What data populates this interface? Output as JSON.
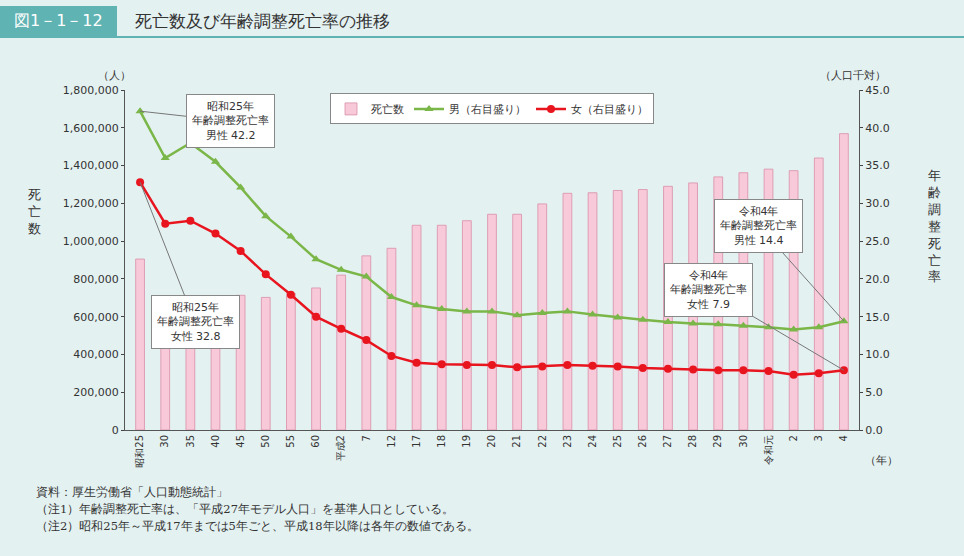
{
  "chart_data": {
    "type": "bar",
    "figure_number": "図1－1－12",
    "title": "死亡数及び年齢調整死亡率の推移",
    "y_label": "死亡数",
    "y2_label": "年齢調整死亡率",
    "y_unit": "（人）",
    "y2_unit": "（人口千対）",
    "x_unit": "（年）",
    "categories": [
      "昭和25",
      "30",
      "35",
      "40",
      "45",
      "50",
      "55",
      "60",
      "平成2",
      "7",
      "12",
      "17",
      "18",
      "19",
      "20",
      "21",
      "22",
      "23",
      "24",
      "25",
      "26",
      "27",
      "28",
      "29",
      "30",
      "令和元",
      "2",
      "3",
      "4"
    ],
    "series": [
      {
        "name": "死亡数",
        "type": "bar",
        "color": "#f7c9d9",
        "values": [
          905000,
          694000,
          707000,
          700000,
          713000,
          702000,
          723000,
          752000,
          820000,
          922000,
          962000,
          1084000,
          1084000,
          1108000,
          1142000,
          1142000,
          1197000,
          1253000,
          1256000,
          1268000,
          1273000,
          1290000,
          1308000,
          1340000,
          1362000,
          1381000,
          1373000,
          1440000,
          1569000
        ]
      },
      {
        "name": "男（右目盛り）",
        "type": "line",
        "axis": "y2",
        "color": "#7ab648",
        "marker": "triangle-up",
        "values": [
          42.2,
          36.0,
          38.0,
          35.5,
          32.1,
          28.3,
          25.6,
          22.6,
          21.2,
          20.3,
          17.6,
          16.5,
          16.0,
          15.7,
          15.7,
          15.2,
          15.5,
          15.7,
          15.3,
          14.9,
          14.6,
          14.3,
          14.1,
          14.0,
          13.8,
          13.6,
          13.3,
          13.6,
          14.4
        ]
      },
      {
        "name": "女（右目盛り）",
        "type": "line",
        "axis": "y2",
        "color": "#e8141e",
        "marker": "circle",
        "values": [
          32.8,
          27.3,
          27.7,
          26.0,
          23.7,
          20.6,
          17.9,
          15.0,
          13.4,
          11.9,
          9.8,
          8.9,
          8.7,
          8.6,
          8.6,
          8.3,
          8.4,
          8.6,
          8.5,
          8.4,
          8.2,
          8.1,
          8.0,
          7.9,
          7.9,
          7.8,
          7.3,
          7.5,
          7.9
        ]
      }
    ],
    "ylim": [
      0,
      1800000
    ],
    "yticks": [
      {
        "value": 0,
        "label": "0"
      },
      {
        "value": 200000,
        "label": "200,000"
      },
      {
        "value": 400000,
        "label": "400,000"
      },
      {
        "value": 600000,
        "label": "600,000"
      },
      {
        "value": 800000,
        "label": "800,000"
      },
      {
        "value": 1000000,
        "label": "1,000,000"
      },
      {
        "value": 1200000,
        "label": "1,200,000"
      },
      {
        "value": 1400000,
        "label": "1,400,000"
      },
      {
        "value": 1600000,
        "label": "1,600,000"
      },
      {
        "value": 1800000,
        "label": "1,800,000"
      }
    ],
    "y2lim": [
      0,
      45
    ],
    "y2ticks": [
      {
        "value": 0,
        "label": "0.0"
      },
      {
        "value": 5,
        "label": "5.0"
      },
      {
        "value": 10,
        "label": "10.0"
      },
      {
        "value": 15,
        "label": "15.0"
      },
      {
        "value": 20,
        "label": "20.0"
      },
      {
        "value": 25,
        "label": "25.0"
      },
      {
        "value": 30,
        "label": "30.0"
      },
      {
        "value": 35,
        "label": "35.0"
      },
      {
        "value": 40,
        "label": "40.0"
      },
      {
        "value": 45,
        "label": "45.0"
      }
    ],
    "grid": false,
    "legend": "top",
    "annotations": [
      {
        "text": "昭和25年\n年齢調整死亡率\n男性 42.2",
        "x": "昭和25",
        "y": 42.2
      },
      {
        "text": "昭和25年\n年齢調整死亡率\n女性 32.8",
        "x": "昭和25",
        "y": 32.8
      },
      {
        "text": "令和4年\n年齢調整死亡率\n男性 14.4",
        "x": "4",
        "y": 14.4
      },
      {
        "text": "令和4年\n年齢調整死亡率\n女性 7.9",
        "x": "4",
        "y": 7.9
      }
    ],
    "notes": [
      "資料：厚生労働省「人口動態統計」",
      "（注1）年齢調整死亡率は、「平成27年モデル人口」を基準人口としている。",
      "（注2）昭和25年～平成17年までは5年ごと、平成18年以降は各年の数値である。"
    ]
  }
}
